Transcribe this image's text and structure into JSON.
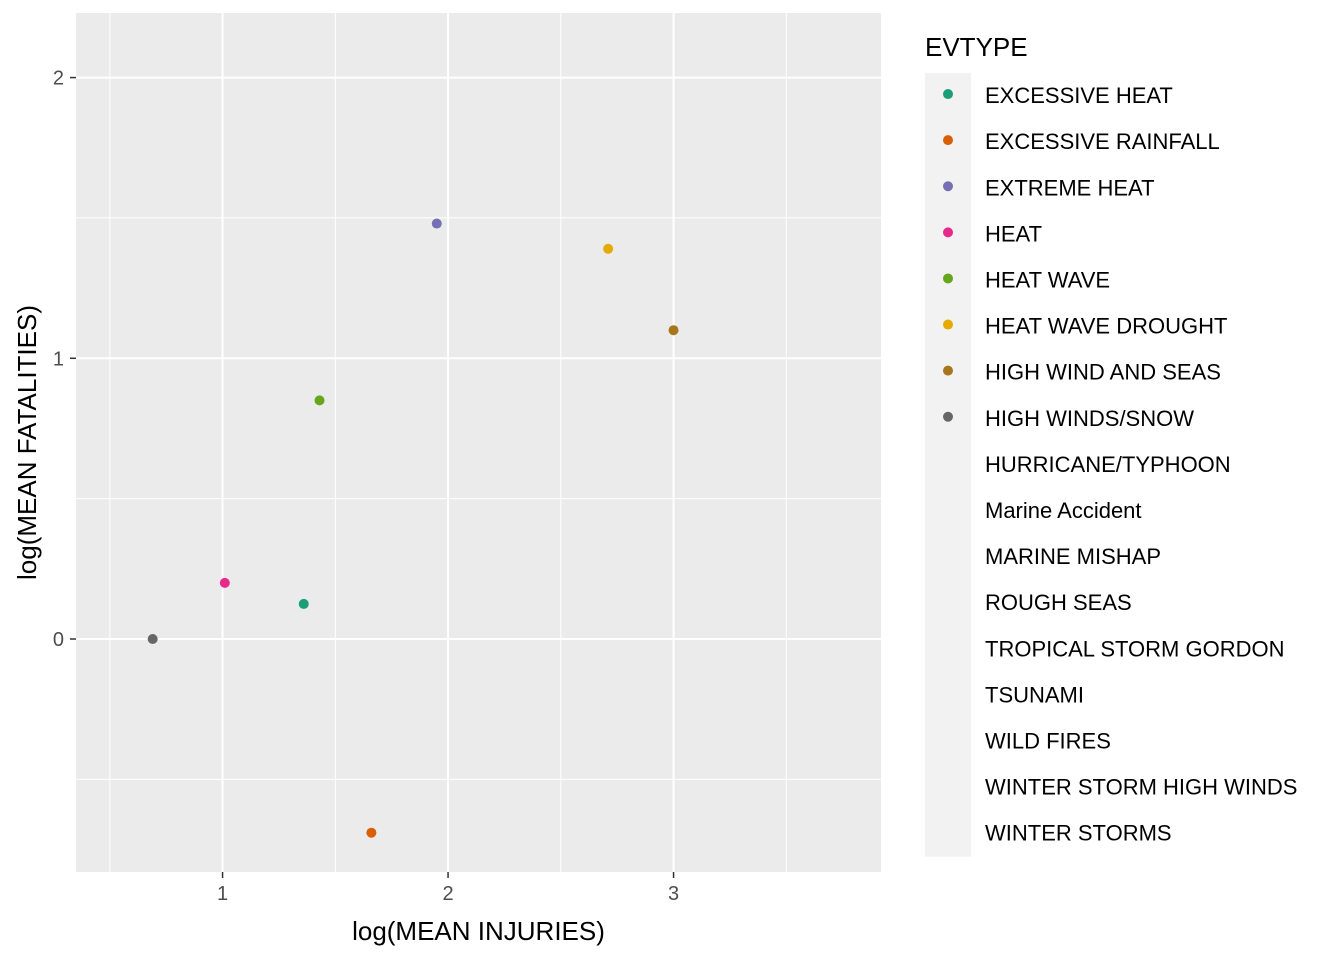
{
  "chart_data": {
    "type": "scatter",
    "xlabel": "log(MEAN INJURIES)",
    "ylabel": "log(MEAN FATALITIES)",
    "xlim": [
      0.35,
      3.92
    ],
    "ylim": [
      -0.83,
      2.23
    ],
    "x_ticks": [
      1,
      2,
      3
    ],
    "x_tick_labels": [
      "1",
      "2",
      "3"
    ],
    "y_ticks": [
      0,
      1,
      2
    ],
    "y_tick_labels": [
      "0",
      "1",
      "2"
    ],
    "grid": true,
    "legend": {
      "title": "EVTYPE",
      "placement": "right",
      "entries": [
        {
          "name": "EXCESSIVE HEAT",
          "color": "#1b9e77"
        },
        {
          "name": "EXCESSIVE RAINFALL",
          "color": "#d95f02"
        },
        {
          "name": "EXTREME HEAT",
          "color": "#7570b3"
        },
        {
          "name": "HEAT",
          "color": "#e7298a"
        },
        {
          "name": "HEAT WAVE",
          "color": "#66a61e"
        },
        {
          "name": "HEAT WAVE DROUGHT",
          "color": "#e6ab02"
        },
        {
          "name": "HIGH WIND AND SEAS",
          "color": "#a6761d"
        },
        {
          "name": "HIGH WINDS/SNOW",
          "color": "#666666"
        },
        {
          "name": "HURRICANE/TYPHOON",
          "color": ""
        },
        {
          "name": "Marine Accident",
          "color": ""
        },
        {
          "name": "MARINE MISHAP",
          "color": ""
        },
        {
          "name": "ROUGH SEAS",
          "color": ""
        },
        {
          "name": "TROPICAL STORM GORDON",
          "color": ""
        },
        {
          "name": "TSUNAMI",
          "color": ""
        },
        {
          "name": "WILD FIRES",
          "color": ""
        },
        {
          "name": "WINTER STORM HIGH WINDS",
          "color": ""
        },
        {
          "name": "WINTER STORMS",
          "color": ""
        }
      ]
    },
    "points": [
      {
        "series": "EXCESSIVE HEAT",
        "x": 1.36,
        "y": 0.125,
        "color": "#1b9e77"
      },
      {
        "series": "EXCESSIVE RAINFALL",
        "x": 1.66,
        "y": -0.69,
        "color": "#d95f02"
      },
      {
        "series": "EXTREME HEAT",
        "x": 1.95,
        "y": 1.48,
        "color": "#7570b3"
      },
      {
        "series": "HEAT",
        "x": 1.01,
        "y": 0.2,
        "color": "#e7298a"
      },
      {
        "series": "HEAT WAVE",
        "x": 1.43,
        "y": 0.85,
        "color": "#66a61e"
      },
      {
        "series": "HEAT WAVE DROUGHT",
        "x": 2.71,
        "y": 1.39,
        "color": "#e6ab02"
      },
      {
        "series": "HIGH WIND AND SEAS",
        "x": 3.0,
        "y": 1.1,
        "color": "#a6761d"
      },
      {
        "series": "HIGH WINDS/SNOW",
        "x": 0.69,
        "y": 0.0,
        "color": "#666666"
      }
    ]
  }
}
